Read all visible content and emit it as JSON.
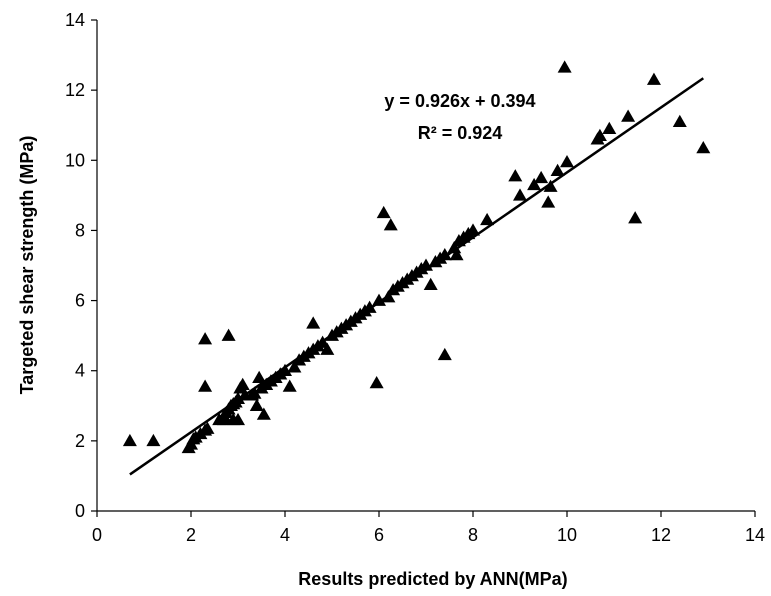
{
  "chart_data": {
    "type": "scatter",
    "title": "",
    "xlabel": "Results predicted by ANN(MPa)",
    "ylabel": "Targeted shear strength (MPa)",
    "xlim": [
      0,
      14
    ],
    "ylim": [
      0,
      14
    ],
    "xticks": [
      "0",
      "2",
      "4",
      "6",
      "8",
      "10",
      "12",
      "14"
    ],
    "yticks": [
      "0",
      "2",
      "4",
      "6",
      "8",
      "10",
      "12",
      "14"
    ],
    "grid": false,
    "legend": "none",
    "marker": "triangle",
    "marker_color": "#000000",
    "trendline": {
      "slope": 0.926,
      "intercept": 0.394,
      "x_range": [
        0.7,
        12.9
      ],
      "equation_label": "y = 0.926x + 0.394",
      "r2_label": "R² = 0.924"
    },
    "points": [
      [
        0.7,
        2.0
      ],
      [
        1.2,
        2.0
      ],
      [
        1.95,
        1.8
      ],
      [
        2.0,
        1.9
      ],
      [
        2.05,
        2.05
      ],
      [
        2.1,
        2.1
      ],
      [
        2.2,
        2.2
      ],
      [
        2.3,
        2.3
      ],
      [
        2.35,
        2.35
      ],
      [
        2.3,
        4.9
      ],
      [
        2.3,
        3.55
      ],
      [
        2.8,
        5.0
      ],
      [
        2.6,
        2.6
      ],
      [
        2.7,
        2.7
      ],
      [
        2.75,
        2.8
      ],
      [
        2.8,
        2.9
      ],
      [
        2.85,
        3.0
      ],
      [
        2.9,
        3.05
      ],
      [
        2.95,
        3.1
      ],
      [
        3.0,
        3.2
      ],
      [
        3.05,
        3.5
      ],
      [
        3.1,
        3.6
      ],
      [
        3.15,
        3.3
      ],
      [
        2.7,
        2.6
      ],
      [
        2.9,
        2.6
      ],
      [
        3.0,
        2.6
      ],
      [
        3.3,
        3.3
      ],
      [
        3.35,
        3.35
      ],
      [
        3.4,
        3.0
      ],
      [
        3.45,
        3.8
      ],
      [
        3.5,
        3.5
      ],
      [
        3.55,
        2.75
      ],
      [
        3.6,
        3.6
      ],
      [
        3.7,
        3.7
      ],
      [
        3.8,
        3.8
      ],
      [
        3.9,
        3.9
      ],
      [
        4.0,
        4.0
      ],
      [
        4.1,
        3.55
      ],
      [
        4.2,
        4.1
      ],
      [
        4.3,
        4.3
      ],
      [
        4.4,
        4.4
      ],
      [
        4.5,
        4.5
      ],
      [
        4.6,
        4.6
      ],
      [
        4.6,
        5.35
      ],
      [
        4.7,
        4.7
      ],
      [
        4.8,
        4.8
      ],
      [
        4.9,
        4.6
      ],
      [
        5.0,
        5.0
      ],
      [
        5.1,
        5.1
      ],
      [
        5.2,
        5.2
      ],
      [
        5.3,
        5.3
      ],
      [
        5.4,
        5.4
      ],
      [
        5.5,
        5.5
      ],
      [
        5.6,
        5.6
      ],
      [
        5.7,
        5.7
      ],
      [
        5.8,
        5.8
      ],
      [
        5.95,
        3.65
      ],
      [
        6.0,
        6.0
      ],
      [
        6.1,
        8.5
      ],
      [
        6.25,
        8.15
      ],
      [
        6.2,
        6.1
      ],
      [
        6.3,
        6.3
      ],
      [
        6.4,
        6.4
      ],
      [
        6.5,
        6.5
      ],
      [
        6.6,
        6.6
      ],
      [
        6.7,
        6.7
      ],
      [
        6.8,
        6.8
      ],
      [
        6.9,
        6.9
      ],
      [
        7.0,
        7.0
      ],
      [
        7.1,
        6.45
      ],
      [
        7.2,
        7.1
      ],
      [
        7.3,
        7.2
      ],
      [
        7.4,
        7.3
      ],
      [
        7.4,
        4.45
      ],
      [
        7.6,
        7.5
      ],
      [
        7.65,
        7.3
      ],
      [
        7.7,
        7.7
      ],
      [
        7.8,
        7.8
      ],
      [
        7.9,
        7.9
      ],
      [
        8.0,
        8.0
      ],
      [
        8.3,
        8.3
      ],
      [
        8.9,
        9.55
      ],
      [
        9.0,
        9.0
      ],
      [
        9.3,
        9.3
      ],
      [
        9.45,
        9.5
      ],
      [
        9.6,
        8.8
      ],
      [
        9.65,
        9.25
      ],
      [
        9.8,
        9.7
      ],
      [
        9.95,
        12.65
      ],
      [
        10.0,
        9.95
      ],
      [
        10.65,
        10.6
      ],
      [
        10.7,
        10.7
      ],
      [
        10.9,
        10.9
      ],
      [
        11.3,
        11.25
      ],
      [
        11.45,
        8.35
      ],
      [
        11.85,
        12.3
      ],
      [
        12.4,
        11.1
      ],
      [
        12.9,
        10.35
      ]
    ]
  }
}
